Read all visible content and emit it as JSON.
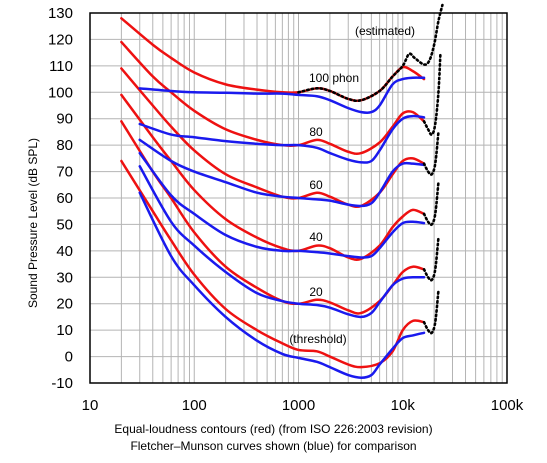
{
  "chart_data": {
    "type": "line",
    "xscale": "log",
    "xlim": [
      10,
      100000
    ],
    "ylim": [
      -10,
      130
    ],
    "ylabel": "Sound Pressure Level (dB SPL)",
    "xlabel": "",
    "grid": true,
    "x_tick_labels": [
      "10",
      "100",
      "1000",
      "10k",
      "100k"
    ],
    "y_tick_labels": [
      "130",
      "120",
      "110",
      "100",
      "90",
      "80",
      "70",
      "60",
      "50",
      "40",
      "30",
      "20",
      "10",
      "0",
      "-10"
    ],
    "captions": [
      "Equal-loudness contours (red) (from ISO 226:2003 revision)",
      "Fletcher–Munson curves shown (blue) for comparison"
    ],
    "annotations": [
      "(estimated)",
      "100 phon",
      "80",
      "60",
      "40",
      "20",
      "(threshold)"
    ],
    "colors": {
      "iso": "#ee1111",
      "fletcher": "#1a1aee",
      "estimated": "#000000",
      "grid": "#b4b4b4"
    },
    "series": [
      {
        "group": "iso",
        "phon": 100,
        "x": [
          20,
          40,
          60,
          100,
          200,
          400,
          700,
          1000,
          1500,
          2000,
          3000,
          4000,
          6000,
          8000,
          10000,
          12500,
          16000
        ],
        "y": [
          128,
          118,
          113,
          107.5,
          103,
          101,
          100,
          100,
          101.5,
          100.5,
          97.5,
          97,
          100.5,
          106,
          109.5,
          108,
          105
        ]
      },
      {
        "group": "iso",
        "phon": 80,
        "x": [
          20,
          40,
          60,
          100,
          200,
          400,
          700,
          1000,
          1500,
          2000,
          3000,
          4000,
          6000,
          8000,
          10000,
          12500,
          16000
        ],
        "y": [
          119,
          106,
          100,
          93,
          86,
          82,
          80,
          80,
          82,
          80.5,
          77.5,
          77,
          81,
          87,
          92,
          92.5,
          89
        ]
      },
      {
        "group": "iso",
        "phon": 60,
        "x": [
          20,
          40,
          60,
          100,
          200,
          400,
          700,
          1000,
          1500,
          2000,
          3000,
          4000,
          6000,
          8000,
          10000,
          12500,
          16000
        ],
        "y": [
          109,
          95,
          87,
          78,
          69,
          64,
          60.5,
          60,
          62,
          60.5,
          57.5,
          57,
          62,
          69,
          74,
          75,
          73
        ]
      },
      {
        "group": "iso",
        "phon": 40,
        "x": [
          20,
          40,
          60,
          100,
          200,
          400,
          700,
          1000,
          1500,
          2000,
          3000,
          4000,
          6000,
          8000,
          10000,
          12500,
          16000
        ],
        "y": [
          99,
          83,
          74,
          63,
          52,
          45,
          41,
          40,
          42,
          41,
          37.5,
          37,
          42,
          49,
          53,
          55.5,
          54
        ]
      },
      {
        "group": "iso",
        "phon": 20,
        "x": [
          20,
          40,
          60,
          100,
          200,
          400,
          700,
          1000,
          1500,
          2000,
          3000,
          4000,
          6000,
          8000,
          10000,
          12500,
          16000
        ],
        "y": [
          89,
          70,
          60,
          47,
          34,
          26,
          21,
          20,
          21.5,
          20.5,
          17.5,
          16.5,
          21,
          27,
          32,
          34,
          33
        ]
      },
      {
        "group": "iso",
        "phon": 0,
        "x": [
          20,
          40,
          60,
          100,
          200,
          400,
          700,
          1000,
          1500,
          2000,
          3000,
          4000,
          6000,
          8000,
          10000,
          12500,
          16000
        ],
        "y": [
          74,
          55,
          44,
          31,
          18,
          10,
          5,
          2.5,
          2,
          0,
          -3,
          -4,
          -2.5,
          2,
          10,
          13.5,
          13
        ]
      },
      {
        "group": "fletcher",
        "phon": 100,
        "x": [
          30,
          60,
          100,
          200,
          400,
          700,
          1000,
          1500,
          2000,
          3000,
          4000,
          5000,
          6000,
          8000,
          10000,
          12500,
          16000
        ],
        "y": [
          101.5,
          100.5,
          100,
          99.8,
          99.5,
          99.5,
          99,
          98.5,
          97,
          94,
          92.5,
          92.5,
          95,
          103,
          105,
          105.5,
          105.5
        ]
      },
      {
        "group": "fletcher",
        "phon": 80,
        "x": [
          30,
          60,
          100,
          200,
          400,
          700,
          1000,
          1500,
          2000,
          3000,
          4000,
          5000,
          6000,
          8000,
          10000,
          12500,
          16000
        ],
        "y": [
          88,
          84,
          83,
          81.5,
          80.5,
          80,
          80,
          79,
          77,
          74.5,
          73.5,
          74,
          78,
          86,
          90,
          91,
          90.5
        ]
      },
      {
        "group": "fletcher",
        "phon": 60,
        "x": [
          30,
          60,
          100,
          200,
          400,
          700,
          1000,
          1500,
          2000,
          3000,
          4000,
          5000,
          6000,
          8000,
          10000,
          12500,
          16000
        ],
        "y": [
          82,
          74,
          70,
          66,
          62,
          60.5,
          60,
          59.5,
          59,
          57.5,
          57,
          58,
          62,
          70,
          73,
          73,
          72.5
        ]
      },
      {
        "group": "fletcher",
        "phon": 40,
        "x": [
          30,
          60,
          100,
          200,
          400,
          700,
          1000,
          1500,
          2000,
          3000,
          4000,
          5000,
          6000,
          8000,
          10000,
          12500,
          16000
        ],
        "y": [
          77,
          61,
          54,
          46,
          41.5,
          40,
          40,
          39.5,
          39,
          38,
          37.5,
          38,
          41,
          47,
          50.5,
          51,
          50.5
        ]
      },
      {
        "group": "fletcher",
        "phon": 20,
        "x": [
          30,
          60,
          100,
          200,
          400,
          700,
          1000,
          1500,
          2000,
          3000,
          4000,
          5000,
          6000,
          8000,
          10000,
          12500,
          16000
        ],
        "y": [
          72,
          51,
          42,
          32,
          24,
          21,
          20,
          19.5,
          18.5,
          16,
          15,
          16.5,
          20.5,
          27,
          29.5,
          30,
          30
        ]
      },
      {
        "group": "fletcher",
        "phon": 0,
        "x": [
          30,
          60,
          100,
          200,
          400,
          700,
          1000,
          1500,
          2000,
          3000,
          4000,
          5000,
          6000,
          8000,
          10000,
          12500,
          16000
        ],
        "y": [
          62,
          38,
          27,
          15,
          6,
          1,
          -0.5,
          -2,
          -4,
          -7,
          -8,
          -7,
          -3,
          3,
          7,
          8,
          9
        ]
      },
      {
        "group": "estimated",
        "phon": 100,
        "x": [
          1000,
          1500,
          2000,
          3000,
          4000,
          6000,
          8000,
          10000,
          11500,
          13000,
          16000,
          18000,
          20000,
          22000,
          24000
        ],
        "y": [
          100,
          101.5,
          100.5,
          97.5,
          97,
          100.5,
          106,
          110,
          114.5,
          113,
          110.5,
          112,
          118,
          127,
          133
        ]
      },
      {
        "group": "estimated",
        "phon": 80,
        "x": [
          16000,
          17500,
          19000,
          20500,
          22000,
          23000
        ],
        "y": [
          89,
          86,
          84,
          88,
          100,
          115
        ]
      },
      {
        "group": "estimated",
        "phon": 60,
        "x": [
          16000,
          17500,
          19000,
          20500,
          22000
        ],
        "y": [
          73,
          70,
          69,
          73,
          85
        ]
      },
      {
        "group": "estimated",
        "phon": 40,
        "x": [
          16000,
          17500,
          19000,
          20500,
          22000
        ],
        "y": [
          54,
          51,
          50,
          54,
          66
        ]
      },
      {
        "group": "estimated",
        "phon": 20,
        "x": [
          16000,
          17500,
          19000,
          20500,
          22000
        ],
        "y": [
          33,
          30,
          29,
          33,
          45
        ]
      },
      {
        "group": "estimated",
        "phon": 0,
        "x": [
          16000,
          17500,
          19000,
          20500,
          22000
        ],
        "y": [
          13,
          10,
          9,
          13,
          25
        ]
      }
    ]
  }
}
